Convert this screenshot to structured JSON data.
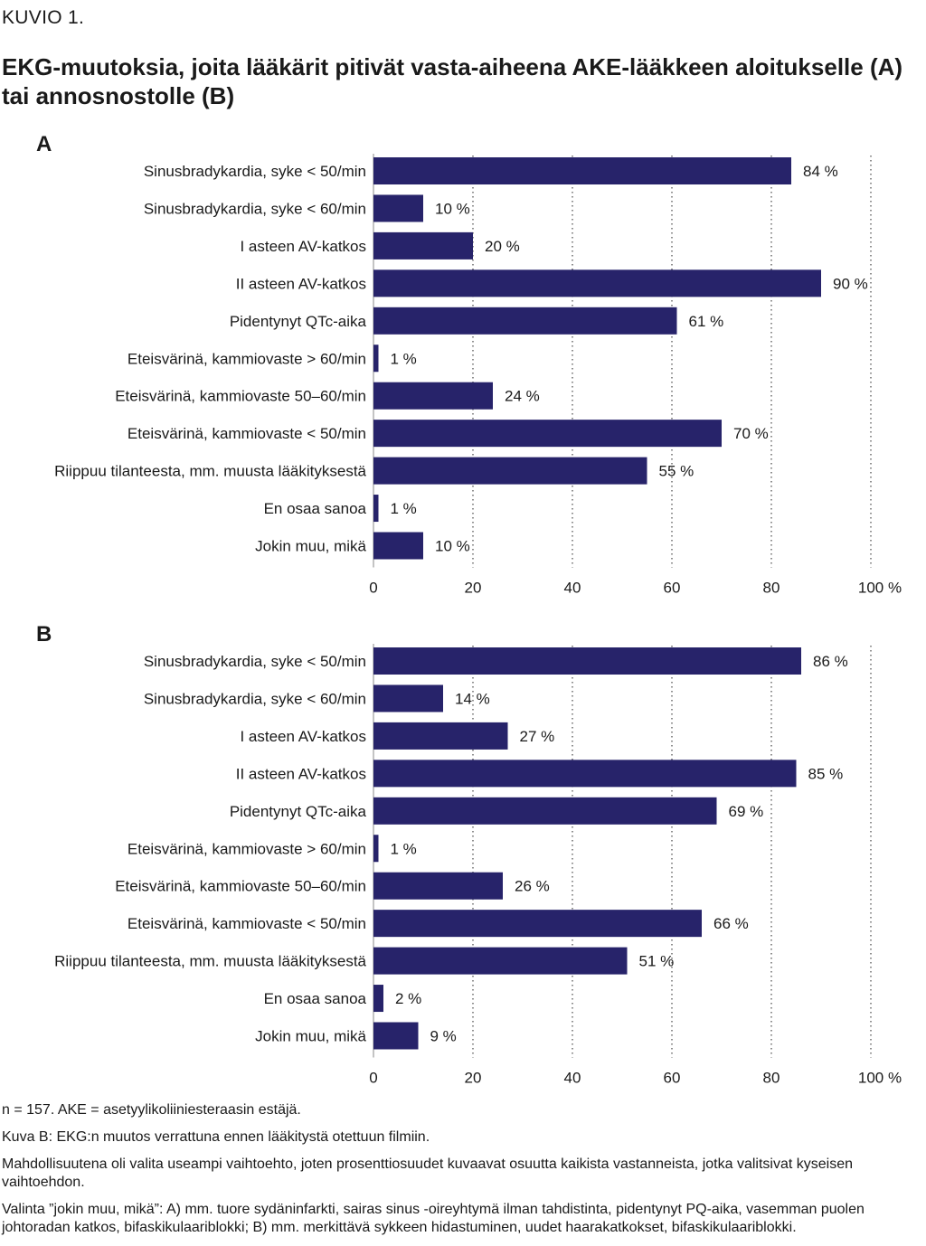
{
  "figure_label": "KUVIO 1.",
  "title": "EKG-muutoksia, joita lääkärit pitivät vasta-aiheena AKE-lääkkeen aloitukselle (A) tai annosnostolle (B)",
  "chart_data": [
    {
      "type": "bar",
      "orientation": "horizontal",
      "panel": "A",
      "categories": [
        "Sinusbradykardia, syke < 50/min",
        "Sinusbradykardia, syke < 60/min",
        "I asteen AV-katkos",
        "II asteen AV-katkos",
        "Pidentynyt QTc-aika",
        "Eteisvärinä, kammiovaste > 60/min",
        "Eteisvärinä, kammiovaste 50–60/min",
        "Eteisvärinä, kammiovaste < 50/min",
        "Riippuu tilanteesta, mm. muusta lääkityksestä",
        "En osaa sanoa",
        "Jokin muu, mikä"
      ],
      "values": [
        84,
        10,
        20,
        90,
        61,
        1,
        24,
        70,
        55,
        1,
        10
      ],
      "value_labels": [
        "84 %",
        "10 %",
        "20 %",
        "90 %",
        "61 %",
        "1 %",
        "24 %",
        "70 %",
        "55 %",
        "1 %",
        "10 %"
      ],
      "xlim": [
        0,
        100
      ],
      "xticks": [
        "0",
        "20",
        "40",
        "60",
        "80",
        "100 %"
      ],
      "grid": "vertical dotted",
      "bar_color": "#27236a"
    },
    {
      "type": "bar",
      "orientation": "horizontal",
      "panel": "B",
      "categories": [
        "Sinusbradykardia, syke < 50/min",
        "Sinusbradykardia, syke < 60/min",
        "I asteen AV-katkos",
        "II asteen AV-katkos",
        "Pidentynyt QTc-aika",
        "Eteisvärinä, kammiovaste > 60/min",
        "Eteisvärinä, kammiovaste 50–60/min",
        "Eteisvärinä, kammiovaste < 50/min",
        "Riippuu tilanteesta, mm. muusta lääkityksestä",
        "En osaa sanoa",
        "Jokin muu, mikä"
      ],
      "values": [
        86,
        14,
        27,
        85,
        69,
        1,
        26,
        66,
        51,
        2,
        9
      ],
      "value_labels": [
        "86 %",
        "14 %",
        "27 %",
        "85 %",
        "69 %",
        "1 %",
        "26 %",
        "66 %",
        "51 %",
        "2 %",
        "9 %"
      ],
      "xlim": [
        0,
        100
      ],
      "xticks": [
        "0",
        "20",
        "40",
        "60",
        "80",
        "100 %"
      ],
      "grid": "vertical dotted",
      "bar_color": "#27236a"
    }
  ],
  "footnotes": [
    "n = 157. AKE = asetyylikoliiniesteraasin estäjä.",
    "Kuva B: EKG:n muutos verrattuna ennen lääkitystä otettuun filmiin.",
    "Mahdollisuutena oli valita useampi vaihtoehto, joten prosenttiosuudet kuvaavat osuutta kaikista vastanneista, jotka valitsivat kyseisen vaihtoehdon.",
    "Valinta ”jokin muu, mikä”: A) mm. tuore sydäninfarkti, sairas sinus -oireyhtymä ilman tahdistinta, pidentynyt PQ-aika, vasemman puolen johtoradan katkos, bifaskikulaariblokki; B) mm. merkittävä sykkeen hidastuminen, uudet haarakatkokset, bifaskikulaariblokki."
  ]
}
